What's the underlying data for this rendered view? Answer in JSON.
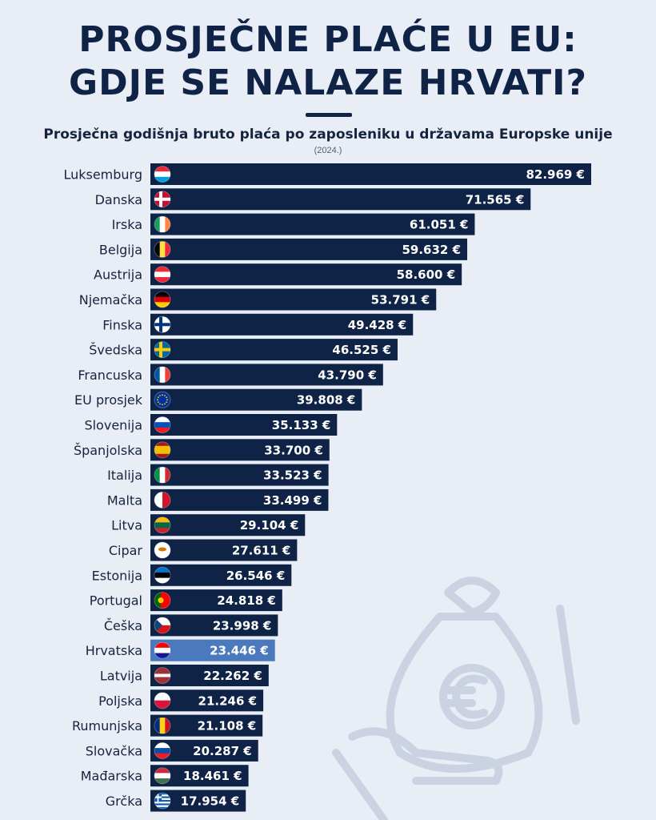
{
  "header": {
    "title_line1": "PROSJEČNE PLAĆE U EU:",
    "title_line2": "GDJE SE NALAZE HRVATI?",
    "subtitle": "Prosječna godišnja bruto plaća po zaposleniku u državama Europske unije",
    "year": "(2024.)"
  },
  "colors": {
    "bar": "#0f2346",
    "highlight": "#4a7abd",
    "background": "#e8edf6"
  },
  "chart_data": {
    "type": "bar",
    "orientation": "horizontal",
    "title": "Prosječna godišnja bruto plaća po zaposleniku u državama Europske unije",
    "unit": "€",
    "highlight": "Hrvatska",
    "categories": [
      "Luksemburg",
      "Danska",
      "Irska",
      "Belgija",
      "Austrija",
      "Njemačka",
      "Finska",
      "Švedska",
      "Francuska",
      "EU prosjek",
      "Slovenija",
      "Španjolska",
      "Italija",
      "Malta",
      "Litva",
      "Cipar",
      "Estonija",
      "Portugal",
      "Češka",
      "Hrvatska",
      "Latvija",
      "Poljska",
      "Rumunjska",
      "Slovačka",
      "Mađarska",
      "Grčka"
    ],
    "values": [
      82969,
      71565,
      61051,
      59632,
      58600,
      53791,
      49428,
      46525,
      43790,
      39808,
      35133,
      33700,
      33523,
      33499,
      29104,
      27611,
      26546,
      24818,
      23998,
      23446,
      22262,
      21246,
      21108,
      20287,
      18461,
      17954
    ],
    "value_labels": [
      "82.969 €",
      "71.565 €",
      "61.051 €",
      "59.632 €",
      "58.600 €",
      "53.791 €",
      "49.428 €",
      "46.525 €",
      "43.790 €",
      "39.808 €",
      "35.133 €",
      "33.700 €",
      "33.523 €",
      "33.499 €",
      "29.104 €",
      "27.611 €",
      "26.546 €",
      "24.818 €",
      "23.998 €",
      "23.446 €",
      "22.262 €",
      "21.246 €",
      "21.108 €",
      "20.287 €",
      "18.461 €",
      "17.954 €"
    ],
    "flags": [
      "flag-luxembourg-icon",
      "flag-denmark-icon",
      "flag-ireland-icon",
      "flag-belgium-icon",
      "flag-austria-icon",
      "flag-germany-icon",
      "flag-finland-icon",
      "flag-sweden-icon",
      "flag-france-icon",
      "flag-eu-icon",
      "flag-slovenia-icon",
      "flag-spain-icon",
      "flag-italy-icon",
      "flag-malta-icon",
      "flag-lithuania-icon",
      "flag-cyprus-icon",
      "flag-estonia-icon",
      "flag-portugal-icon",
      "flag-czechia-icon",
      "flag-croatia-icon",
      "flag-latvia-icon",
      "flag-poland-icon",
      "flag-romania-icon",
      "flag-slovakia-icon",
      "flag-hungary-icon",
      "flag-greece-icon"
    ],
    "xlim": [
      0,
      82969
    ]
  }
}
